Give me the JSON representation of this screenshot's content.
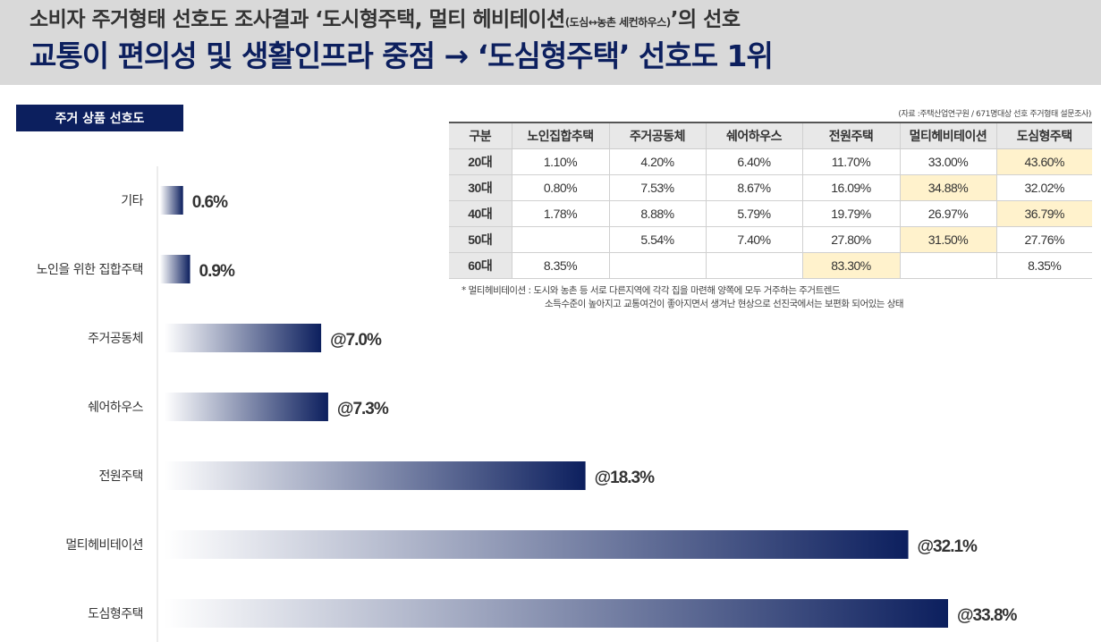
{
  "header": {
    "line1_pre": "소비자 주거형태 선호도 조사결과 ‘도시형주택, 멀티 헤비테이션",
    "line1_small": "(도심↔농촌 세컨하우스)",
    "line1_post": "’의 선호",
    "line2": "교통이 편의성 및 생활인프라 중점 → ‘도심형주택’ 선호도 1위"
  },
  "section_title": "주거 상품 선호도",
  "source_note": "(자료 :주택산업연구원 / 671명대상 선호 주거형태 설문조사)",
  "chart_data": {
    "type": "bar",
    "orientation": "horizontal",
    "categories": [
      "기타",
      "노인을 위한 집합주택",
      "주거공동체",
      "쉐어하우스",
      "전원주택",
      "멀티헤비테이션",
      "도심형주택"
    ],
    "values": [
      0.6,
      0.9,
      7.0,
      7.3,
      18.3,
      32.1,
      33.8
    ],
    "value_labels": [
      "0.6%",
      "0.9%",
      "@7.0%",
      "@7.3%",
      "@18.3%",
      "@32.1%",
      "@33.8%"
    ],
    "gradient_colors": [
      "#ffffff",
      "#0c1f5e"
    ],
    "label_color": "#333333",
    "xlim": [
      0,
      35
    ]
  },
  "table": {
    "headers": [
      "구분",
      "노인집합추택",
      "주거공동체",
      "쉐어하우스",
      "전원주택",
      "멀티헤비테이션",
      "도심형주택"
    ],
    "rows": [
      {
        "cells": [
          "20대",
          "1.10%",
          "4.20%",
          "6.40%",
          "11.70%",
          "33.00%",
          "43.60%"
        ],
        "highlight": [
          6
        ]
      },
      {
        "cells": [
          "30대",
          "0.80%",
          "7.53%",
          "8.67%",
          "16.09%",
          "34.88%",
          "32.02%"
        ],
        "highlight": [
          5
        ]
      },
      {
        "cells": [
          "40대",
          "1.78%",
          "8.88%",
          "5.79%",
          "19.79%",
          "26.97%",
          "36.79%"
        ],
        "highlight": [
          6
        ]
      },
      {
        "cells": [
          "50대",
          "",
          "5.54%",
          "7.40%",
          "27.80%",
          "31.50%",
          "27.76%"
        ],
        "highlight": [
          5
        ]
      },
      {
        "cells": [
          "60대",
          "8.35%",
          "",
          "",
          "83.30%",
          "",
          "8.35%"
        ],
        "highlight": [
          4
        ]
      }
    ],
    "highlight_color": "#fff2cc"
  },
  "footnote": {
    "line1": "* 멀티헤비테이션 : 도시와 농촌 등 서로 다른지역에 각각 집을 마련해 양쪽에 모두 거주하는 주거트렌드",
    "line2": "소득수준이 높아지고 교통여건이 좋아지면서 생겨난 현상으로 선진국에서는 보편화  되어있는 상태"
  }
}
